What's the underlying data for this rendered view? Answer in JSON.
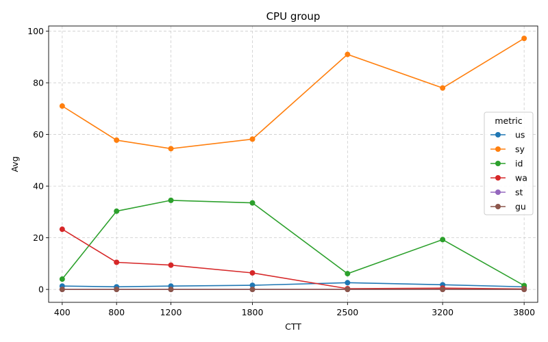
{
  "chart_data": {
    "type": "line",
    "title": "CPU group",
    "xlabel": "CTT",
    "ylabel": "Avg",
    "x": [
      400,
      800,
      1200,
      1800,
      2500,
      3200,
      3800
    ],
    "x_tick_labels": [
      "400",
      "800",
      "1200",
      "1800",
      "2500",
      "3200",
      "3800"
    ],
    "xlim": [
      300,
      3900
    ],
    "ylim": [
      -5,
      102
    ],
    "y_ticks": [
      0,
      20,
      40,
      60,
      80,
      100
    ],
    "y_tick_labels": [
      "0",
      "20",
      "40",
      "60",
      "80",
      "100"
    ],
    "grid": true,
    "legend": {
      "title": "metric",
      "placement": "center-right"
    },
    "series": [
      {
        "name": "us",
        "color": "#1f77b4",
        "values": [
          1.3,
          1.0,
          1.3,
          1.6,
          2.6,
          1.8,
          1.0
        ]
      },
      {
        "name": "sy",
        "color": "#ff7f0e",
        "values": [
          71.0,
          57.8,
          54.5,
          58.2,
          91.0,
          78.0,
          97.2
        ]
      },
      {
        "name": "id",
        "color": "#2ca02c",
        "values": [
          4.0,
          30.3,
          34.5,
          33.5,
          6.1,
          19.3,
          1.5
        ]
      },
      {
        "name": "wa",
        "color": "#d62728",
        "values": [
          23.3,
          10.5,
          9.4,
          6.4,
          0.3,
          0.5,
          0.2
        ]
      },
      {
        "name": "st",
        "color": "#9467bd",
        "values": [
          0,
          0,
          0,
          0,
          0,
          0,
          0
        ]
      },
      {
        "name": "gu",
        "color": "#8c564b",
        "values": [
          0,
          0,
          0,
          0,
          0,
          0,
          0
        ]
      }
    ]
  }
}
